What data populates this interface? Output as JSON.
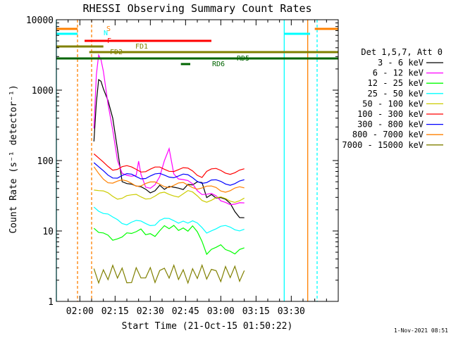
{
  "chart_data": {
    "type": "line",
    "title": "RHESSI Observing Summary Count Rates",
    "xlabel": "Start Time (21-Oct-15 01:50:22)",
    "ylabel": "Count Rate (s⁻¹ detector⁻¹)",
    "yscale": "log",
    "ylim": [
      1,
      10000
    ],
    "xlim_minutes": [
      0,
      120
    ],
    "x_ticks": [
      {
        "minute": 10,
        "label": "02:00"
      },
      {
        "minute": 25,
        "label": "02:15"
      },
      {
        "minute": 40,
        "label": "02:30"
      },
      {
        "minute": 55,
        "label": "02:45"
      },
      {
        "minute": 70,
        "label": "03:00"
      },
      {
        "minute": 85,
        "label": "03:15"
      },
      {
        "minute": 100,
        "label": "03:30"
      }
    ],
    "y_ticks": [
      {
        "value": 1,
        "label": "1"
      },
      {
        "value": 10,
        "label": "10"
      },
      {
        "value": 100,
        "label": "100"
      },
      {
        "value": 1000,
        "label": "1000"
      },
      {
        "value": 10000,
        "label": "10000"
      }
    ],
    "legend_header": "Det 1,5,7, Att 0",
    "series": [
      {
        "name": "3 - 6 keV",
        "color": "#000000",
        "x": [
          16,
          17,
          18,
          19,
          20,
          22,
          24,
          26,
          28,
          30,
          32,
          34,
          36,
          38,
          40,
          42,
          44,
          46,
          48,
          50,
          52,
          54,
          56,
          58,
          60,
          62,
          64,
          66,
          68,
          70,
          72,
          74,
          76,
          78,
          80
        ],
        "values": [
          180,
          700,
          1550,
          1400,
          1000,
          650,
          380,
          150,
          55,
          50,
          45,
          40,
          40,
          40,
          38,
          40,
          44,
          36,
          40,
          42,
          44,
          42,
          46,
          42,
          46,
          48,
          32,
          36,
          30,
          28,
          26,
          24,
          20,
          17,
          16
        ]
      },
      {
        "name": "6 - 12 keV",
        "color": "#ff00ff",
        "x": [
          16,
          17,
          18,
          19,
          20,
          22,
          24,
          26,
          28,
          30,
          32,
          34,
          35,
          36,
          38,
          40,
          42,
          44,
          46,
          48,
          50,
          52,
          54,
          56,
          58,
          60,
          62,
          64,
          66,
          68,
          70,
          72,
          74,
          76,
          78,
          80
        ],
        "values": [
          300,
          1800,
          3300,
          2600,
          1700,
          600,
          280,
          110,
          70,
          60,
          55,
          58,
          100,
          70,
          45,
          40,
          42,
          55,
          100,
          160,
          70,
          55,
          50,
          48,
          46,
          40,
          36,
          34,
          32,
          29,
          26,
          27,
          26,
          25,
          24,
          23
        ]
      },
      {
        "name": "12 - 25 keV",
        "color": "#00ff00",
        "x": [
          16,
          18,
          20,
          22,
          24,
          26,
          28,
          30,
          32,
          34,
          36,
          38,
          40,
          42,
          44,
          46,
          48,
          50,
          52,
          54,
          56,
          58,
          60,
          62,
          64,
          66,
          68,
          70,
          72,
          74,
          76,
          78,
          80
        ],
        "values": [
          12,
          10,
          9,
          8,
          7,
          8,
          9,
          10,
          9,
          9,
          10,
          9,
          10,
          9,
          10,
          11,
          10,
          12,
          11,
          12,
          10,
          11,
          9,
          7,
          5,
          6,
          6,
          6,
          5,
          5,
          5,
          6,
          6
        ]
      },
      {
        "name": "25 - 50 keV",
        "color": "#00ffff",
        "x": [
          16,
          18,
          20,
          22,
          24,
          26,
          28,
          30,
          32,
          34,
          36,
          38,
          40,
          42,
          44,
          46,
          48,
          50,
          52,
          54,
          56,
          58,
          60,
          62,
          64,
          66,
          68,
          70,
          72,
          74,
          76,
          78,
          80
        ],
        "values": [
          24,
          20,
          17,
          16,
          15,
          15,
          14,
          13,
          13,
          13,
          13,
          13,
          13,
          13,
          14,
          14,
          14,
          14,
          14,
          15,
          13,
          13,
          12,
          11,
          10,
          11,
          11,
          11,
          11,
          11,
          11,
          11,
          11
        ]
      },
      {
        "name": "50 - 100 keV",
        "color": "#cccc00",
        "x": [
          16,
          18,
          20,
          22,
          24,
          26,
          28,
          30,
          32,
          34,
          36,
          38,
          40,
          42,
          44,
          46,
          48,
          50,
          52,
          54,
          56,
          58,
          60,
          62,
          64,
          66,
          68,
          70,
          72,
          74,
          76,
          78,
          80
        ],
        "values": [
          40,
          36,
          34,
          33,
          32,
          31,
          31,
          31,
          30,
          31,
          31,
          31,
          31,
          31,
          32,
          33,
          33,
          34,
          33,
          34,
          35,
          33,
          31,
          29,
          28,
          28,
          28,
          28,
          28,
          28,
          28,
          28,
          28
        ]
      },
      {
        "name": "100 - 300 keV",
        "color": "#ff0000",
        "x": [
          16,
          18,
          20,
          22,
          24,
          26,
          28,
          30,
          32,
          34,
          36,
          38,
          40,
          42,
          44,
          46,
          48,
          50,
          52,
          54,
          56,
          58,
          60,
          62,
          64,
          66,
          68,
          70,
          72,
          74,
          76,
          78,
          80
        ],
        "values": [
          120,
          100,
          90,
          85,
          80,
          80,
          80,
          78,
          76,
          76,
          75,
          75,
          75,
          75,
          75,
          75,
          76,
          76,
          75,
          74,
          72,
          70,
          66,
          63,
          72,
          72,
          71,
          70,
          70,
          70,
          70,
          70,
          70
        ]
      },
      {
        "name": "300 - 800 keV",
        "color": "#0000ff",
        "x": [
          16,
          18,
          20,
          22,
          24,
          26,
          28,
          30,
          32,
          34,
          36,
          38,
          40,
          42,
          44,
          46,
          48,
          50,
          52,
          54,
          56,
          58,
          60,
          62,
          64,
          66,
          68,
          70,
          72,
          74,
          76,
          78,
          80
        ],
        "values": [
          90,
          75,
          68,
          64,
          62,
          60,
          60,
          60,
          60,
          60,
          60,
          60,
          60,
          60,
          61,
          62,
          63,
          62,
          61,
          60,
          58,
          56,
          54,
          52,
          50,
          50,
          49,
          49,
          49,
          49,
          49,
          49,
          49
        ]
      },
      {
        "name": "800 - 7000 keV",
        "color": "#ff8000",
        "x": [
          16,
          18,
          20,
          22,
          24,
          26,
          28,
          30,
          32,
          34,
          36,
          38,
          40,
          42,
          44,
          46,
          48,
          50,
          52,
          54,
          56,
          58,
          60,
          62,
          64,
          66,
          68,
          70,
          72,
          74,
          76,
          78,
          80
        ],
        "values": [
          75,
          62,
          56,
          53,
          51,
          50,
          49,
          48,
          48,
          47,
          47,
          47,
          46,
          46,
          46,
          46,
          45,
          45,
          45,
          45,
          44,
          44,
          43,
          42,
          41,
          40,
          40,
          39,
          39,
          39,
          39,
          39,
          39
        ]
      },
      {
        "name": "7000 - 15000 keV",
        "color": "#808000",
        "x": [
          16,
          18,
          20,
          22,
          24,
          26,
          28,
          30,
          32,
          34,
          36,
          38,
          40,
          42,
          44,
          46,
          48,
          50,
          52,
          54,
          56,
          58,
          60,
          62,
          64,
          66,
          68,
          70,
          72,
          74,
          76,
          78,
          80
        ],
        "values": [
          3,
          2,
          3,
          2,
          3,
          2,
          3,
          2,
          2,
          3,
          2,
          2,
          3,
          2,
          3,
          3,
          2,
          3,
          2,
          3,
          2,
          3,
          2,
          3,
          2,
          3,
          3,
          2,
          3,
          2,
          3,
          2,
          3
        ]
      }
    ],
    "flag_bars": [
      {
        "label": "S",
        "color": "#ff8000",
        "segments": [
          [
            0,
            9
          ],
          [
            110,
            120
          ]
        ]
      },
      {
        "label": "N",
        "color": "#00ffff",
        "segments": [
          [
            0,
            9
          ],
          [
            97,
            108
          ]
        ]
      },
      {
        "label": "F",
        "color": "#ff0000",
        "segments": [
          [
            12,
            66
          ]
        ]
      },
      {
        "label": "FD1",
        "color": "#808000",
        "segments": [
          [
            0,
            20
          ]
        ]
      },
      {
        "label": "FD2",
        "color": "#808000",
        "segments": [
          [
            14,
            120
          ]
        ]
      },
      {
        "label": "RD5",
        "color": "#006400",
        "segments": [
          [
            0,
            120
          ]
        ]
      },
      {
        "label": "RD6",
        "color": "#006400",
        "segments": [
          [
            53,
            57
          ]
        ]
      }
    ],
    "vlines": [
      {
        "x": 0,
        "color": "#00ffff",
        "dash": false
      },
      {
        "x": 9,
        "color": "#ff8000",
        "dash": true
      },
      {
        "x": 15,
        "color": "#ff8000",
        "dash": true
      },
      {
        "x": 97,
        "color": "#00ffff",
        "dash": false
      },
      {
        "x": 107,
        "color": "#ff8000",
        "dash": false
      },
      {
        "x": 111,
        "color": "#00ffff",
        "dash": true
      }
    ],
    "timestamp": "1-Nov-2021 08:51"
  }
}
